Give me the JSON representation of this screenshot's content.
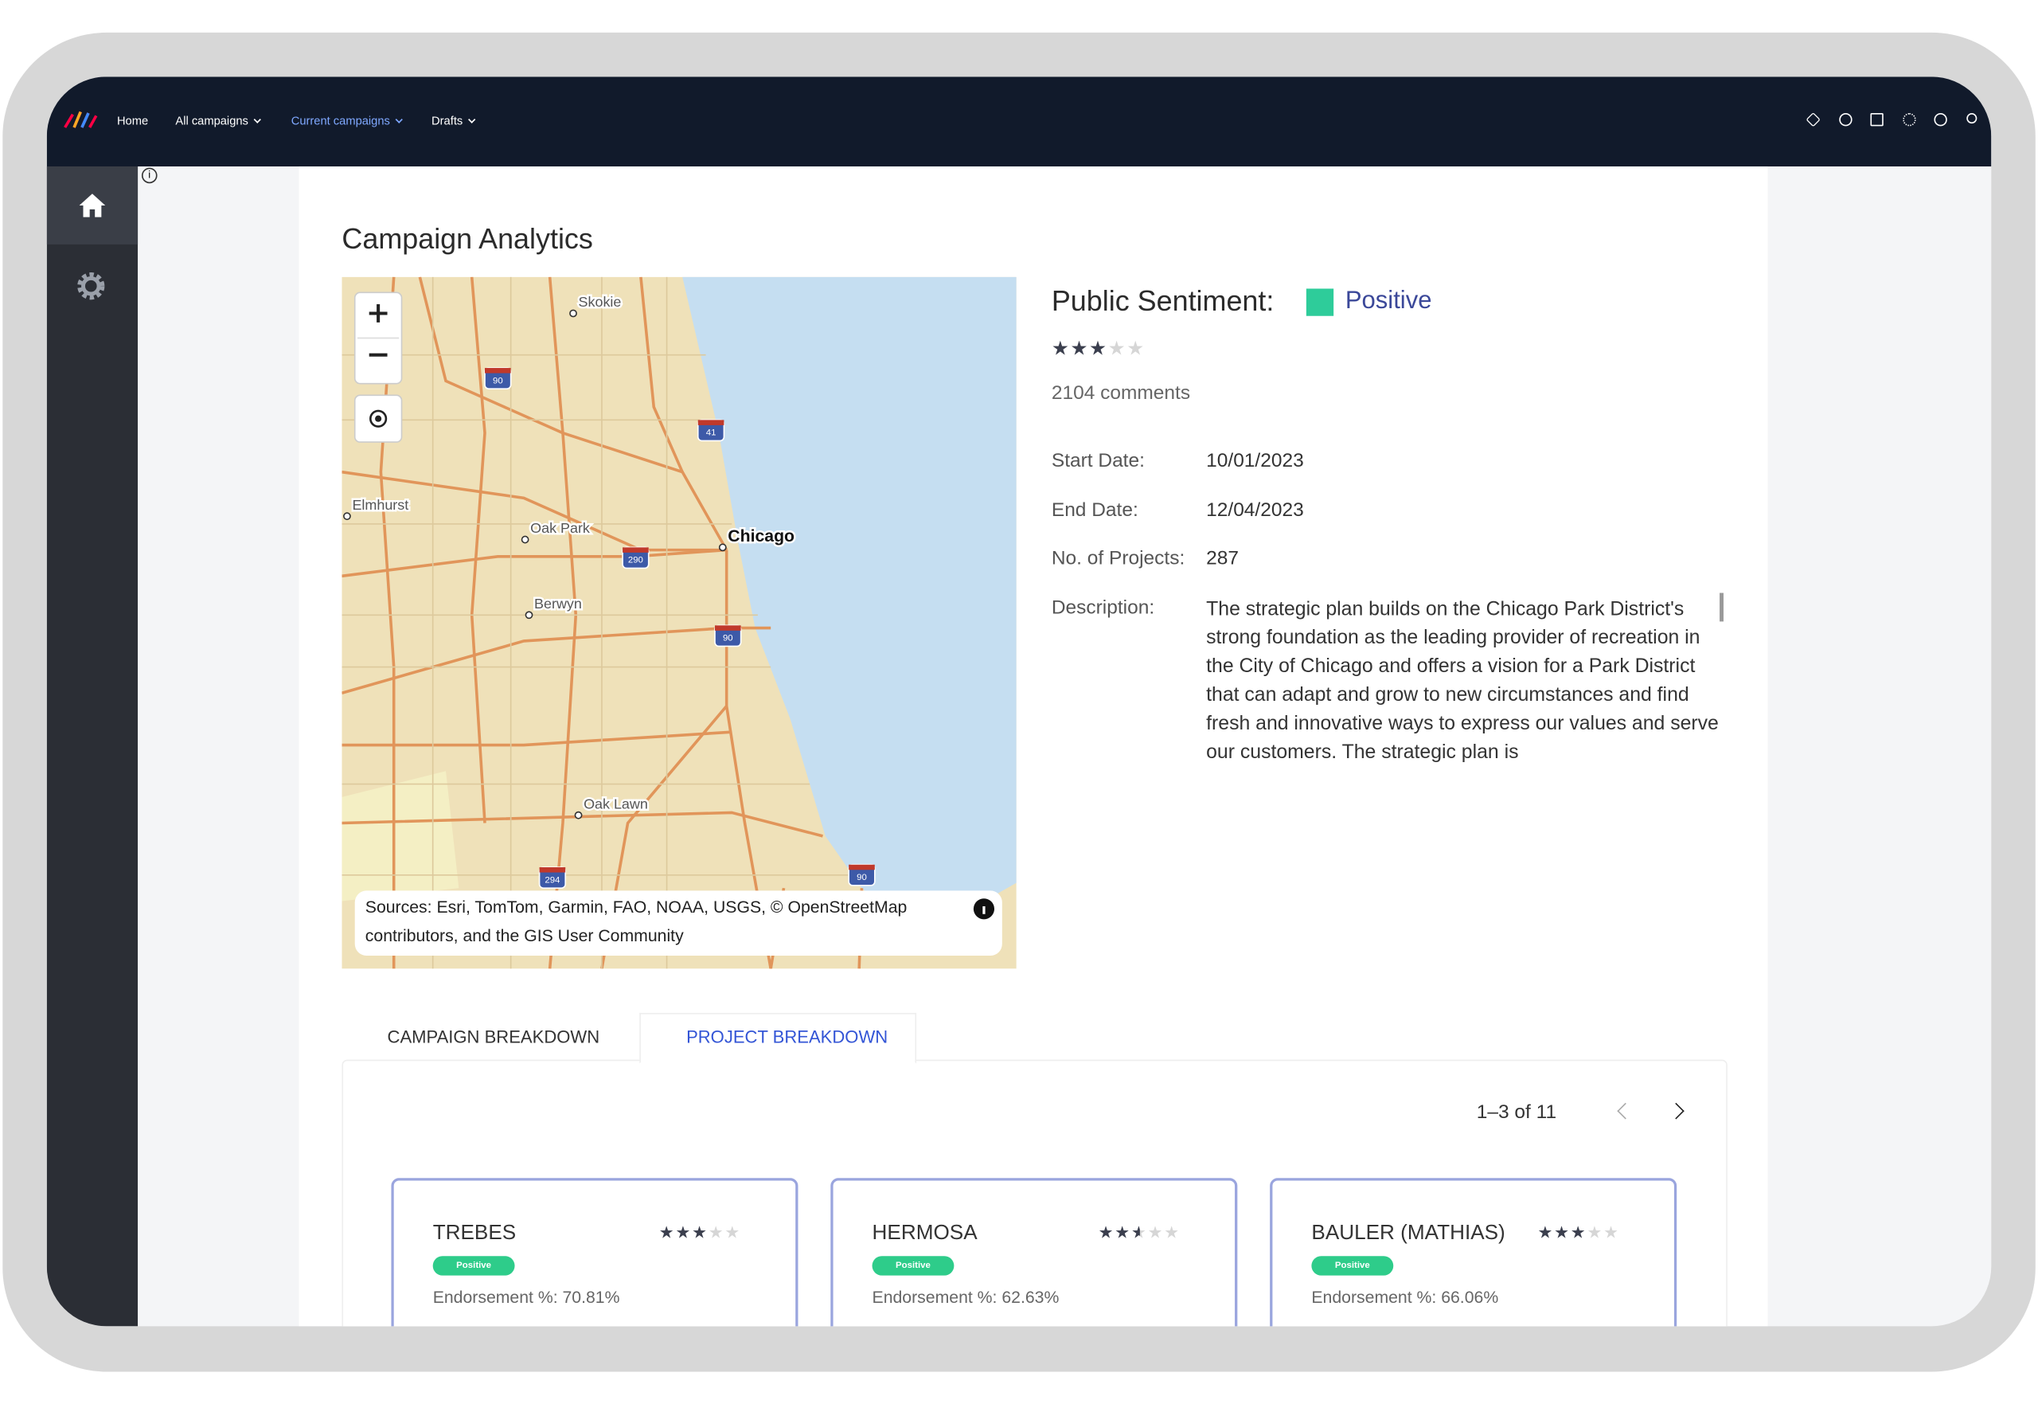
{
  "nav": {
    "items": [
      "Home",
      "All campaigns",
      "Current campaigns",
      "Drafts"
    ]
  },
  "page": {
    "title": "Campaign Analytics"
  },
  "map": {
    "places": [
      "Skokie",
      "Elmhurst",
      "Oak Park",
      "Chicago",
      "Berwyn",
      "Oak Lawn"
    ],
    "highways": [
      "90",
      "41",
      "290",
      "90",
      "294",
      "90"
    ],
    "attribution": "Sources: Esri, TomTom, Garmin, FAO, NOAA, USGS, © OpenStreetMap contributors, and the GIS User Community"
  },
  "summary": {
    "sentiment_label": "Public Sentiment:",
    "sentiment": "Positive",
    "rating": 3,
    "comments": "2104 comments",
    "fields": [
      {
        "label": "Start Date:",
        "value": "10/01/2023"
      },
      {
        "label": "End Date:",
        "value": "12/04/2023"
      },
      {
        "label": "No. of Projects:",
        "value": "287"
      }
    ],
    "description_label": "Description:",
    "description": "The strategic plan builds on the Chicago Park District's strong foundation as the leading provider of recreation in the City of Chicago and offers a vision for a Park District that can adapt and grow to new circumstances and find fresh and innovative ways to express our values and serve our customers. The strategic plan is"
  },
  "tabs": [
    "CAMPAIGN BREAKDOWN",
    "PROJECT BREAKDOWN"
  ],
  "pagination": "1–3 of 11",
  "projects": [
    {
      "name": "TREBES",
      "rating": 3,
      "badge": "Positive",
      "endorsement": "Endorsement %: 70.81%"
    },
    {
      "name": "HERMOSA",
      "rating": 2.5,
      "badge": "Positive",
      "endorsement": "Endorsement %: 62.63%"
    },
    {
      "name": "BAULER (MATHIAS)",
      "rating": 3,
      "badge": "Positive",
      "endorsement": "Endorsement %: 66.06%"
    }
  ]
}
